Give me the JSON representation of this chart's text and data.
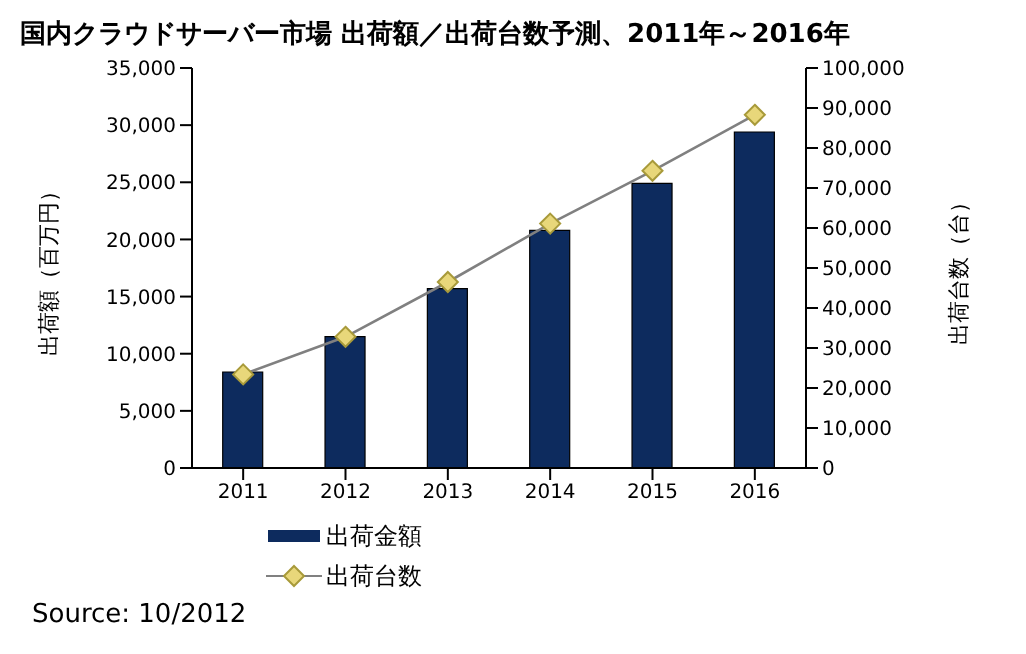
{
  "chart_data": {
    "type": "bar",
    "title": "国内クラウドサーバー市場 出荷額／出荷台数予測、2011年～2016年",
    "categories": [
      "2011",
      "2012",
      "2013",
      "2014",
      "2015",
      "2016"
    ],
    "series": [
      {
        "name": "出荷金額",
        "color": "#0d2b5e",
        "values": [
          8400,
          11500,
          15700,
          20800,
          24900,
          29400
        ]
      },
      {
        "name": "出荷台数",
        "type": "line",
        "axis": "y2",
        "color": "#808080",
        "marker": "diamond",
        "values": [
          23400,
          32800,
          46500,
          61100,
          74300,
          88300
        ]
      }
    ],
    "ylabel": "出荷額（百万円）",
    "y2label": "出荷台数（台）",
    "ylim": [
      0,
      35000
    ],
    "yticks": [
      0,
      {
        "value": 5000,
        "label": "5,000"
      },
      {
        "value": 10000,
        "label": "10,000"
      },
      {
        "value": 15000,
        "label": "15,000"
      },
      {
        "value": 20000,
        "label": "20,000"
      },
      {
        "value": 25000,
        "label": "25,000"
      },
      {
        "value": 30000,
        "label": "30,000"
      },
      {
        "value": 35000,
        "label": "35,000"
      }
    ],
    "y2lim": [
      0,
      100000
    ],
    "y2ticks": [
      0,
      {
        "value": 10000,
        "label": "10,000"
      },
      {
        "value": 20000,
        "label": "20,000"
      },
      {
        "value": 30000,
        "label": "30,000"
      },
      {
        "value": 40000,
        "label": "40,000"
      },
      {
        "value": 50000,
        "label": "50,000"
      },
      {
        "value": 60000,
        "label": "60,000"
      },
      {
        "value": 70000,
        "label": "70,000"
      },
      {
        "value": 80000,
        "label": "80,000"
      },
      {
        "value": 90000,
        "label": "90,000"
      },
      {
        "value": 100000,
        "label": "100,000"
      }
    ],
    "legend": "bottom",
    "annotations": [
      "Source: 10/2012"
    ]
  }
}
